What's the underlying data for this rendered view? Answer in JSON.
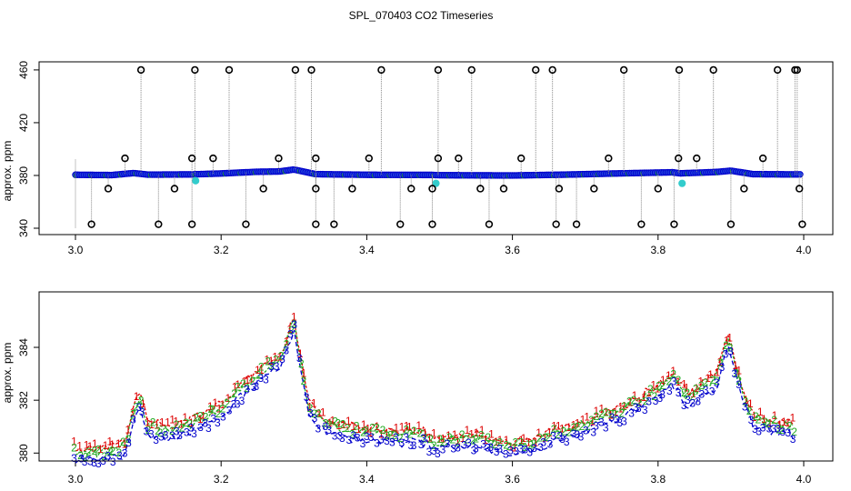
{
  "figure": {
    "title": "SPL_070403  CO2 Timeseries"
  },
  "colors": {
    "axis": "#000000",
    "outlier_marker": "#000000",
    "drop_line": "#888888",
    "series1": "#dd0000",
    "series2": "#22aa22",
    "series3": "#0000cc",
    "fill": "#2244dd",
    "highlight": "#33cccc",
    "connector": "#0000cc"
  },
  "chart_data": [
    {
      "type": "scatter",
      "panel": "top",
      "title": "",
      "xlabel": "",
      "ylabel": "approx. ppm",
      "xlim": [
        3.0,
        4.0
      ],
      "ylim": [
        340,
        462
      ],
      "x_ticks": [
        "3.0",
        "3.2",
        "3.4",
        "3.6",
        "3.8",
        "4.0"
      ],
      "y_ticks": [
        "340",
        "380",
        "420",
        "460"
      ],
      "grid": false,
      "baseline_points": [
        [
          3.0,
          380.5
        ],
        [
          3.05,
          380.3
        ],
        [
          3.08,
          381.8
        ],
        [
          3.1,
          380.6
        ],
        [
          3.16,
          380.8
        ],
        [
          3.2,
          381.5
        ],
        [
          3.25,
          382.8
        ],
        [
          3.28,
          383.0
        ],
        [
          3.3,
          384.5
        ],
        [
          3.33,
          381.0
        ],
        [
          3.4,
          380.5
        ],
        [
          3.49,
          380.4
        ],
        [
          3.5,
          380.2
        ],
        [
          3.6,
          380.0
        ],
        [
          3.67,
          380.6
        ],
        [
          3.75,
          381.6
        ],
        [
          3.82,
          382.4
        ],
        [
          3.83,
          381.6
        ],
        [
          3.88,
          382.6
        ],
        [
          3.9,
          383.6
        ],
        [
          3.93,
          381.0
        ],
        [
          3.98,
          380.8
        ]
      ],
      "highlight_points": [
        [
          3.165,
          376
        ],
        [
          3.495,
          374
        ],
        [
          3.833,
          374
        ]
      ],
      "outliers_high": [
        3.09,
        3.164,
        3.211,
        3.302,
        3.324,
        3.42,
        3.498,
        3.544,
        3.632,
        3.655,
        3.753,
        3.829,
        3.876,
        3.964,
        3.988,
        3.991
      ],
      "outliers_low": [
        3.022,
        3.114,
        3.16,
        3.234,
        3.33,
        3.355,
        3.446,
        3.49,
        3.568,
        3.66,
        3.688,
        3.777,
        3.822,
        3.9,
        3.998
      ],
      "outliers_mid_high": [
        3.068,
        3.16,
        3.189,
        3.279,
        3.33,
        3.403,
        3.498,
        3.526,
        3.612,
        3.732,
        3.828,
        3.853,
        3.944
      ],
      "outliers_mid_low": [
        3.045,
        3.136,
        3.258,
        3.33,
        3.38,
        3.461,
        3.49,
        3.556,
        3.588,
        3.664,
        3.712,
        3.8,
        3.918,
        3.994
      ],
      "values_units": {
        "high": 460,
        "low": 343,
        "mid_high": 393,
        "mid_low": 370
      }
    },
    {
      "type": "line",
      "panel": "bottom",
      "title": "",
      "xlabel": "",
      "ylabel": "approx. ppm",
      "xlim": [
        3.0,
        4.0
      ],
      "ylim": [
        379.7,
        386.1
      ],
      "x_ticks": [
        "3.0",
        "3.2",
        "3.4",
        "3.6",
        "3.8",
        "4.0"
      ],
      "y_ticks": [
        "380",
        "382",
        "384"
      ],
      "grid": false,
      "series": [
        {
          "label_char": "1",
          "color_key": "series1",
          "offset": 0.25
        },
        {
          "label_char": "2",
          "color_key": "series2",
          "offset": 0.1
        },
        {
          "label_char": "3",
          "color_key": "series3",
          "offset": -0.2
        }
      ],
      "profile": [
        [
          3.0,
          380.0
        ],
        [
          3.02,
          379.9
        ],
        [
          3.05,
          380.0
        ],
        [
          3.07,
          380.2
        ],
        [
          3.08,
          381.6
        ],
        [
          3.09,
          381.9
        ],
        [
          3.1,
          380.9
        ],
        [
          3.13,
          380.8
        ],
        [
          3.16,
          381.0
        ],
        [
          3.18,
          381.3
        ],
        [
          3.2,
          381.6
        ],
        [
          3.23,
          382.4
        ],
        [
          3.25,
          382.9
        ],
        [
          3.27,
          383.3
        ],
        [
          3.285,
          383.6
        ],
        [
          3.3,
          385.0
        ],
        [
          3.31,
          383.2
        ],
        [
          3.32,
          381.7
        ],
        [
          3.34,
          381.1
        ],
        [
          3.37,
          380.8
        ],
        [
          3.4,
          380.7
        ],
        [
          3.45,
          380.6
        ],
        [
          3.48,
          380.6
        ],
        [
          3.49,
          380.3
        ],
        [
          3.52,
          380.4
        ],
        [
          3.55,
          380.5
        ],
        [
          3.58,
          380.3
        ],
        [
          3.6,
          380.1
        ],
        [
          3.63,
          380.3
        ],
        [
          3.66,
          380.7
        ],
        [
          3.7,
          381.0
        ],
        [
          3.75,
          381.5
        ],
        [
          3.8,
          382.3
        ],
        [
          3.82,
          382.8
        ],
        [
          3.84,
          382.0
        ],
        [
          3.86,
          382.4
        ],
        [
          3.88,
          382.7
        ],
        [
          3.895,
          384.3
        ],
        [
          3.91,
          382.8
        ],
        [
          3.93,
          381.2
        ],
        [
          3.96,
          381.0
        ],
        [
          3.985,
          380.9
        ]
      ]
    }
  ]
}
